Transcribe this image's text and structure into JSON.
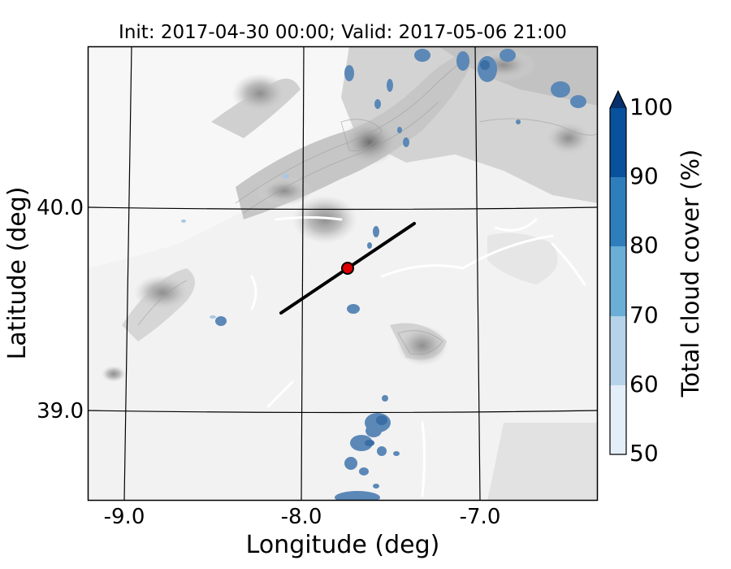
{
  "title": "Init: 2017-04-30 00:00; Valid: 2017-05-06 21:00",
  "map": {
    "xlabel": "Longitude (deg)",
    "ylabel": "Latitude (deg)",
    "lon_ticks": [
      "-9.0",
      "-8.0",
      "-7.0"
    ],
    "lat_ticks": [
      "40.0",
      "39.0"
    ],
    "lon_range": [
      -9.25,
      -6.4
    ],
    "lat_range": [
      38.55,
      40.8
    ],
    "grid": true,
    "background": "terrain elevation shaded in greys (white = low, dark grey = high)",
    "transect": {
      "start": [
        -8.12,
        39.48
      ],
      "end": [
        -7.37,
        39.92
      ],
      "line_color": "#000000"
    },
    "point": {
      "lon": -7.75,
      "lat": 39.69,
      "color": "#dd0000"
    }
  },
  "colorbar": {
    "label": "Total cloud cover (%)",
    "ticks": [
      "100",
      "90",
      "80",
      "70",
      "60",
      "50"
    ],
    "levels": [
      50,
      60,
      70,
      80,
      90,
      100
    ],
    "colors": [
      "#e3eef8",
      "#b6d3e9",
      "#6baed6",
      "#2e7ebc",
      "#08519c",
      "#08306b"
    ],
    "extend": "max"
  }
}
